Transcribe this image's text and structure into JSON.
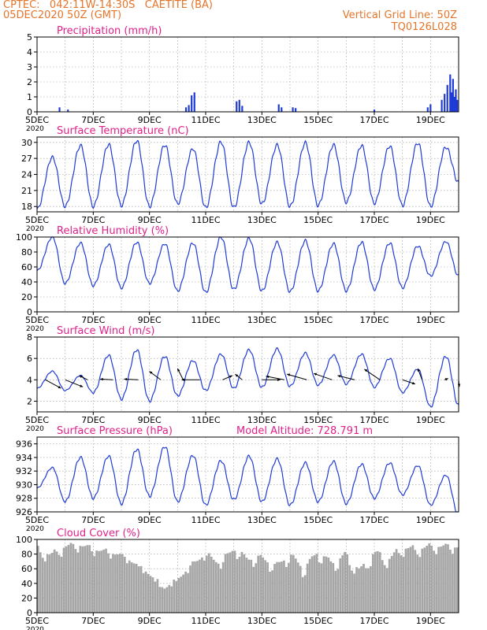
{
  "header": {
    "line1_left": "CPTEC:   042:11W-14:30S   CAETITE (BA)",
    "line2_left": "05DEC2020 50Z (GMT)",
    "line1_right": "Vertical Grid Line: 50Z",
    "line2_right": "TQ0126L028"
  },
  "colors": {
    "header": "#e4752b",
    "title": "#e0218a",
    "series": "#1f3bd6",
    "bars": "#a6a6a6",
    "axis": "#000000",
    "grid": "#9a9a9a",
    "wind_arrow": "#000000"
  },
  "x_axis": {
    "range_days": [
      5,
      20
    ],
    "tick_labels": [
      "5DEC",
      "7DEC",
      "9DEC",
      "11DEC",
      "13DEC",
      "15DEC",
      "17DEC",
      "19DEC"
    ],
    "tick_days": [
      5,
      7,
      9,
      11,
      13,
      15,
      17,
      19
    ],
    "year_label": "2020"
  },
  "chart_data": [
    {
      "id": "precip",
      "type": "bar",
      "title": "Precipitation  (mm/h)",
      "ylim": [
        0,
        5
      ],
      "yticks": [
        0,
        1,
        2,
        3,
        4,
        5
      ],
      "ytick_labels": [
        "0",
        "1",
        "2",
        "3",
        "4",
        "5"
      ],
      "x": [
        5.8,
        6.1,
        10.3,
        10.4,
        10.5,
        10.6,
        12.1,
        12.2,
        12.3,
        13.6,
        13.7,
        14.1,
        14.2,
        17.0,
        18.9,
        19.0,
        19.4,
        19.5,
        19.6,
        19.7,
        19.75,
        19.8,
        19.85,
        19.9,
        19.95
      ],
      "values": [
        0.3,
        0.15,
        0.3,
        0.45,
        1.1,
        1.3,
        0.7,
        0.8,
        0.4,
        0.5,
        0.3,
        0.3,
        0.25,
        0.15,
        0.3,
        0.5,
        0.8,
        1.2,
        1.8,
        2.5,
        1.3,
        2.2,
        1.0,
        1.5,
        0.8
      ]
    },
    {
      "id": "temp",
      "type": "line",
      "title": "Surface Temperature  (nC)",
      "ylim": [
        17,
        31
      ],
      "yticks": [
        18,
        21,
        24,
        27,
        30
      ],
      "ytick_labels": [
        "18",
        "21",
        "24",
        "27",
        "30"
      ],
      "diurnal": {
        "max": [
          27.2,
          29.4,
          29.6,
          30.3,
          29.5,
          28.8,
          30.1,
          30.0,
          29.5,
          29.9,
          29.5,
          29.4,
          29.3,
          29.9,
          29.1
        ],
        "min": [
          17.5,
          18.0,
          18.0,
          18.2,
          18.0,
          18.5,
          17.8,
          17.8,
          18.5,
          18.0,
          18.2,
          18.8,
          18.6,
          18.2,
          18.0,
          22.5
        ]
      }
    },
    {
      "id": "rh",
      "type": "line",
      "title": "Relative Humidity  (%)",
      "ylim": [
        0,
        100
      ],
      "yticks": [
        0,
        20,
        40,
        60,
        80,
        100
      ],
      "ytick_labels": [
        "0",
        "20",
        "40",
        "60",
        "80",
        "100"
      ],
      "diurnal": {
        "max": [
          100,
          92,
          90,
          93,
          91,
          92,
          100,
          98,
          93,
          95,
          91,
          93,
          92,
          88,
          94,
          100
        ],
        "min": [
          55,
          38,
          35,
          32,
          38,
          28,
          26,
          30,
          28,
          27,
          28,
          28,
          30,
          32,
          48
        ]
      }
    },
    {
      "id": "wind",
      "type": "line",
      "title": "Surface Wind  (m/s)",
      "ylim": [
        1,
        8
      ],
      "yticks": [
        2,
        4,
        6,
        8
      ],
      "ytick_labels": [
        "2",
        "4",
        "6",
        "8"
      ],
      "diurnal": {
        "max": [
          4.8,
          4.4,
          6.3,
          6.8,
          6.2,
          5.8,
          6.4,
          6.8,
          6.9,
          6.5,
          6.3,
          6.4,
          6.0,
          5.0,
          6.2,
          3.9
        ],
        "min": [
          3.2,
          3.0,
          2.8,
          2.2,
          2.0,
          2.5,
          3.0,
          3.2,
          3.3,
          3.4,
          3.5,
          3.6,
          3.3,
          2.8,
          1.5,
          1.6
        ]
      },
      "arrows": {
        "x": [
          5.3,
          6.0,
          6.8,
          7.7,
          8.6,
          9.4,
          10.2,
          10.8,
          11.6,
          12.3,
          13.0,
          13.8,
          14.6,
          15.5,
          16.3,
          17.2,
          18.0,
          18.7,
          19.5,
          20.0
        ],
        "u": [
          2.2,
          2.5,
          -1.2,
          -1.8,
          -2.0,
          -1.6,
          -0.8,
          -2.6,
          1.4,
          -1.0,
          2.6,
          -2.6,
          -2.8,
          -2.6,
          -2.4,
          -2.2,
          1.8,
          -0.6,
          0.5,
          0.1
        ],
        "v": [
          -1.2,
          -1.0,
          0.6,
          0.1,
          0.1,
          1.2,
          1.6,
          0.0,
          0.6,
          0.8,
          0.0,
          0.5,
          0.8,
          0.9,
          0.6,
          1.5,
          -0.6,
          1.6,
          0.2,
          -1.0
        ]
      }
    },
    {
      "id": "pres",
      "type": "line",
      "title": "Surface Pressure  (hPa)",
      "subtitle": "Model Altitude: 728.791 m",
      "ylim": [
        926,
        937
      ],
      "yticks": [
        926,
        928,
        930,
        932,
        934,
        936
      ],
      "ytick_labels": [
        "926",
        "928",
        "930",
        "932",
        "934",
        "936"
      ],
      "diurnal": {
        "max": [
          932.5,
          934.0,
          934.2,
          935.2,
          935.6,
          934.3,
          933.5,
          934.2,
          933.8,
          933.2,
          933.4,
          933.0,
          933.2,
          932.8,
          931.4,
          930.5
        ],
        "min": [
          929.5,
          927.5,
          928.0,
          927.2,
          928.3,
          927.5,
          927.0,
          927.8,
          927.5,
          927.0,
          927.5,
          927.2,
          928.0,
          928.5,
          927.0,
          925.5
        ]
      }
    },
    {
      "id": "cloud",
      "type": "bar",
      "title": "Cloud Cover  (%)",
      "ylim": [
        0,
        100
      ],
      "yticks": [
        0,
        20,
        40,
        60,
        80,
        100
      ],
      "ytick_labels": [
        "0",
        "20",
        "40",
        "60",
        "80",
        "100"
      ],
      "profile_days": [
        5.0,
        5.5,
        6.0,
        6.5,
        7.0,
        7.5,
        8.0,
        8.5,
        9.0,
        9.5,
        10.0,
        10.5,
        11.0,
        11.5,
        12.0,
        12.5,
        13.0,
        13.5,
        14.0,
        14.5,
        15.0,
        15.5,
        16.0,
        16.5,
        17.0,
        17.5,
        18.0,
        18.5,
        19.0,
        19.5,
        20.0
      ],
      "profile_values": [
        92,
        84,
        96,
        98,
        92,
        88,
        84,
        72,
        58,
        38,
        50,
        70,
        85,
        72,
        92,
        78,
        80,
        68,
        84,
        65,
        88,
        72,
        84,
        62,
        88,
        78,
        94,
        92,
        96,
        96,
        95
      ]
    }
  ]
}
